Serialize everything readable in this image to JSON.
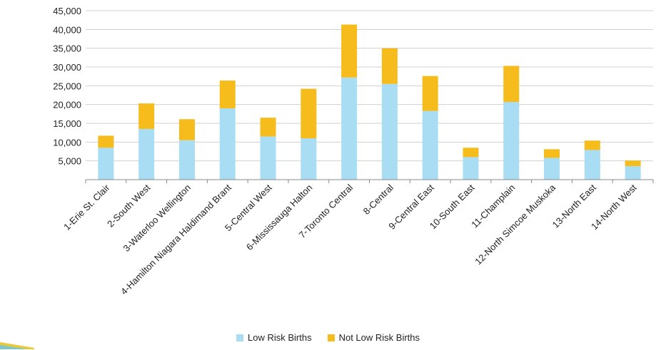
{
  "chart_data": {
    "type": "bar",
    "stacked": true,
    "categories": [
      "1-Erie St. Clair",
      "2-South West",
      "3-Waterloo Wellington",
      "4-Hamilton Niagara Haldimand Brant",
      "5-Central West",
      "6-Mississauga Halton",
      "7-Toronto Central",
      "8-Central",
      "9-Central East",
      "10-South East",
      "11-Champlain",
      "12-North Simcoe Muskoka",
      "13-North East",
      "14-North West"
    ],
    "series": [
      {
        "name": "Low Risk Births",
        "color": "#A9DDF3",
        "values": [
          8500,
          13500,
          10500,
          19000,
          11500,
          11000,
          27200,
          25500,
          18300,
          6000,
          20700,
          5800,
          7900,
          3600
        ]
      },
      {
        "name": "Not Low Risk Births",
        "color": "#F5BC1C",
        "values": [
          3200,
          6800,
          5600,
          7400,
          5000,
          13200,
          14100,
          9500,
          9300,
          2500,
          9600,
          2300,
          2500,
          1500
        ]
      }
    ],
    "ylim": [
      0,
      45000
    ],
    "yticks": [
      "5,000",
      "10,000",
      "15,000",
      "20,000",
      "25,000",
      "30,000",
      "35,000",
      "40,000",
      "45,000"
    ],
    "ytick_values": [
      5000,
      10000,
      15000,
      20000,
      25000,
      30000,
      35000,
      40000,
      45000
    ],
    "grid": true,
    "legend_position": "bottom",
    "title": "",
    "xlabel": "",
    "ylabel": ""
  }
}
